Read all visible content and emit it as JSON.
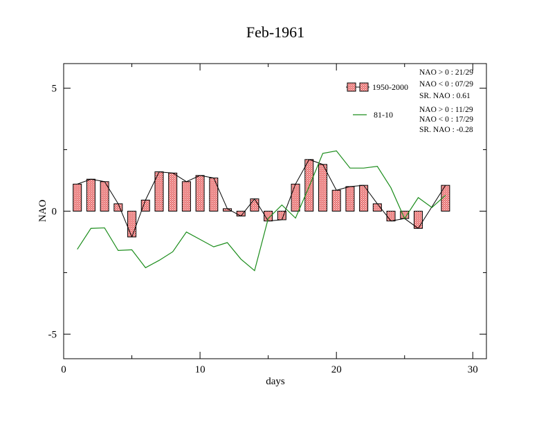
{
  "chart_data": {
    "type": "bar",
    "title": "Feb-1961",
    "xlabel": "days",
    "ylabel": "NAO",
    "xlim": [
      0,
      31
    ],
    "ylim": [
      -6,
      6
    ],
    "xticks": [
      0,
      10,
      20,
      30
    ],
    "xtick_labels": [
      "0",
      "10",
      "20",
      "30"
    ],
    "yticks": [
      -5,
      0,
      5
    ],
    "ytick_labels": [
      "-5",
      "0",
      "5"
    ],
    "grid": false,
    "legend_position": "top-right",
    "x": [
      1,
      2,
      3,
      4,
      5,
      6,
      7,
      8,
      9,
      10,
      11,
      12,
      13,
      14,
      15,
      16,
      17,
      18,
      19,
      20,
      21,
      22,
      23,
      24,
      25,
      26,
      27,
      28
    ],
    "series": [
      {
        "name": "1950-2000",
        "style": "bar",
        "color": "#e06060",
        "values": [
          1.1,
          1.3,
          1.2,
          0.3,
          -1.05,
          0.45,
          1.6,
          1.55,
          1.2,
          1.45,
          1.35,
          0.1,
          -0.2,
          0.5,
          -0.4,
          -0.35,
          1.1,
          2.1,
          1.9,
          0.85,
          1.0,
          1.05,
          0.3,
          -0.4,
          -0.3,
          -0.7,
          null,
          1.05
        ]
      },
      {
        "name": "81-10",
        "style": "line",
        "color": "#1a8c1a",
        "values": [
          -1.55,
          -0.7,
          -0.68,
          -1.6,
          -1.57,
          -2.3,
          -2.0,
          -1.65,
          -0.85,
          -1.15,
          -1.45,
          -1.28,
          -1.95,
          -2.42,
          -0.3,
          0.25,
          -0.28,
          1.0,
          2.35,
          2.45,
          1.75,
          1.75,
          1.82,
          0.95,
          -0.3,
          0.55,
          0.15,
          0.65
        ]
      }
    ],
    "stats": [
      {
        "series": "1950-2000",
        "lines": [
          "NAO > 0 : 21/29",
          "NAO < 0 : 07/29",
          "SR. NAO :  0.61"
        ]
      },
      {
        "series": "81-10",
        "lines": [
          "NAO > 0 : 11/29",
          "NAO < 0 : 17/29",
          "SR. NAO : -0.28"
        ]
      }
    ]
  }
}
